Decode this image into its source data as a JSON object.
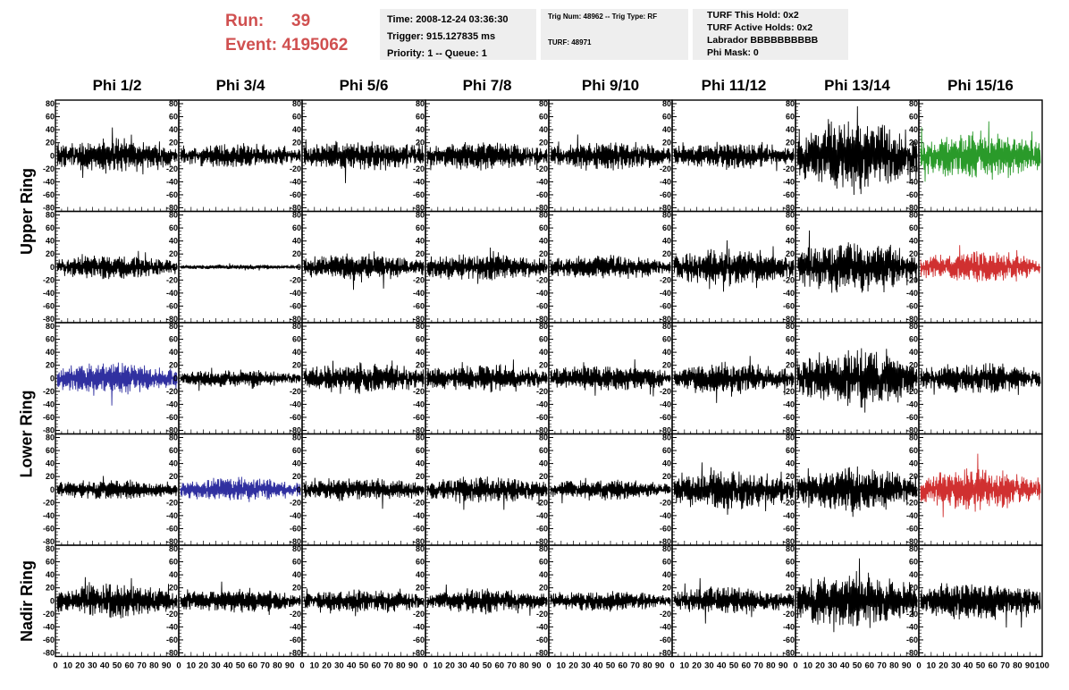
{
  "header": {
    "run_label": "Run:",
    "run_value": "39",
    "event_label": "Event:",
    "event_value": "4195062",
    "time_line": "Time: 2008-12-24 03:36:30",
    "trigger_line": "Trigger: 915.127835 ms",
    "priority_line": "Priority: 1 -- Queue: 1",
    "trig_line": "Trig Num: 48962 -- Trig Type: RF",
    "turf_line": "TURF: 48971",
    "turf_hold_line": "TURF This Hold: 0x2",
    "turf_active_line": "TURF Active Holds: 0x2",
    "labrador_line": "Labrador BBBBBBBBBB",
    "phimask_line": "Phi Mask: 0"
  },
  "columns": [
    "Phi 1/2",
    "Phi 3/4",
    "Phi 5/6",
    "Phi 7/8",
    "Phi 9/10",
    "Phi 11/12",
    "Phi 13/14",
    "Phi 15/16"
  ],
  "ring_labels": [
    {
      "text": "Upper Ring",
      "rows": [
        0,
        1
      ]
    },
    {
      "text": "Lower Ring",
      "rows": [
        2,
        3
      ]
    },
    {
      "text": "Nadir Ring",
      "rows": [
        4
      ]
    }
  ],
  "chart_data": {
    "type": "line",
    "grid": "8 columns x 5 rows of waveform panels",
    "grid_lines": false,
    "ylim": [
      -80,
      80
    ],
    "y_ticks": [
      -80,
      -60,
      -40,
      -20,
      0,
      20,
      40,
      60,
      80
    ],
    "xlim": [
      0,
      100
    ],
    "x_ticks": [
      0,
      10,
      20,
      30,
      40,
      50,
      60,
      70,
      80,
      90,
      100
    ],
    "colors": {
      "default": "#000000",
      "green": "#2a9a2a",
      "red": "#d03030",
      "blue": "#3030a0"
    },
    "panel_amplitude": [
      [
        20,
        14,
        18,
        16,
        16,
        16,
        42,
        28
      ],
      [
        14,
        3,
        16,
        16,
        14,
        22,
        30,
        18
      ],
      [
        18,
        10,
        18,
        16,
        16,
        18,
        34,
        18
      ],
      [
        12,
        14,
        14,
        16,
        12,
        22,
        26,
        24
      ],
      [
        20,
        14,
        14,
        14,
        12,
        16,
        32,
        22
      ]
    ],
    "panel_color": [
      [
        "default",
        "default",
        "default",
        "default",
        "default",
        "default",
        "default",
        "green"
      ],
      [
        "default",
        "default",
        "default",
        "default",
        "default",
        "default",
        "default",
        "red"
      ],
      [
        "blue",
        "default",
        "default",
        "default",
        "default",
        "default",
        "default",
        "default"
      ],
      [
        "default",
        "blue",
        "default",
        "default",
        "default",
        "default",
        "default",
        "red"
      ],
      [
        "default",
        "default",
        "default",
        "default",
        "default",
        "default",
        "default",
        "default"
      ]
    ],
    "series_note": "noise-like waveforms; values in mV-like units between ylim"
  }
}
